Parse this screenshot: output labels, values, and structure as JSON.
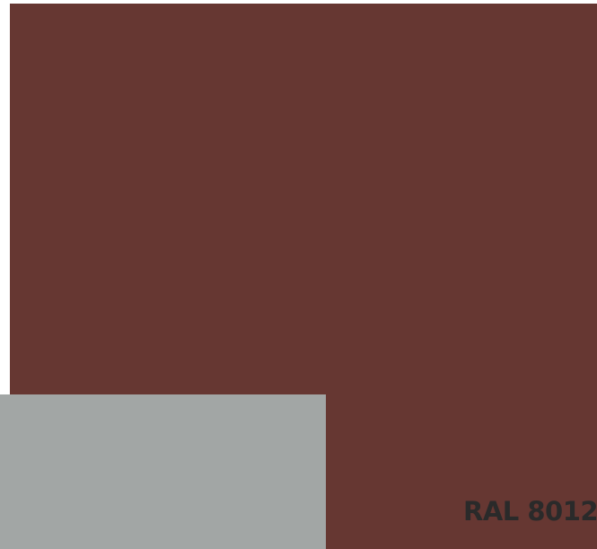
{
  "label": {
    "code": "RAL 8012"
  },
  "colors": {
    "main_swatch": "#663732",
    "secondary_swatch": "#a2a6a5",
    "label_text": "#2a2a2a",
    "background": "#ffffff"
  }
}
